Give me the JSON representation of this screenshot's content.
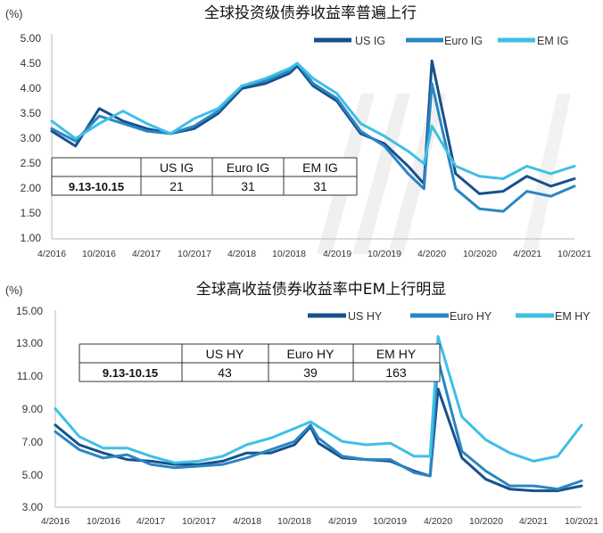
{
  "colors": {
    "us": "#17508c",
    "euro": "#2a86c2",
    "em": "#3fbfe6",
    "axis": "#b9b9b9",
    "text": "#333333"
  },
  "charts": [
    {
      "title": "全球投资级债券收益率普遍上行",
      "unit": "(%)",
      "yticks": [
        "5.00",
        "4.50",
        "4.00",
        "3.50",
        "3.00",
        "2.50",
        "2.00",
        "1.50",
        "1.00"
      ],
      "xticks": [
        "4/2016",
        "10/2016",
        "4/2017",
        "10/2017",
        "4/2018",
        "10/2018",
        "4/2019",
        "10/2019",
        "4/2020",
        "10/2020",
        "4/2021",
        "10/2021"
      ],
      "legend": [
        "US IG",
        "Euro IG",
        "EM IG"
      ],
      "table": {
        "headers": [
          "US IG",
          "Euro IG",
          "EM IG"
        ],
        "row_label": "9.13-10.15",
        "values": [
          "21",
          "31",
          "31"
        ]
      }
    },
    {
      "title": "全球高收益债券收益率中EM上行明显",
      "unit": "(%)",
      "yticks": [
        "15.00",
        "13.00",
        "11.00",
        "9.00",
        "7.00",
        "5.00",
        "3.00"
      ],
      "xticks": [
        "4/2016",
        "10/2016",
        "4/2017",
        "10/2017",
        "4/2018",
        "10/2018",
        "4/2019",
        "10/2019",
        "4/2020",
        "10/2020",
        "4/2021",
        "10/2021"
      ],
      "legend": [
        "US HY",
        "Euro HY",
        "EM HY"
      ],
      "table": {
        "headers": [
          "US HY",
          "Euro HY",
          "EM HY"
        ],
        "row_label": "9.13-10.15",
        "values": [
          "43",
          "39",
          "163"
        ]
      }
    }
  ],
  "chart_data": [
    {
      "type": "line",
      "title": "全球投资级债券收益率普遍上行",
      "ylabel": "(%)",
      "ylim": [
        1.0,
        5.0
      ],
      "x": [
        "2016-04",
        "2016-07",
        "2016-10",
        "2017-01",
        "2017-04",
        "2017-07",
        "2017-10",
        "2018-01",
        "2018-04",
        "2018-07",
        "2018-10",
        "2018-11",
        "2019-01",
        "2019-04",
        "2019-07",
        "2019-10",
        "2020-01",
        "2020-03",
        "2020-04",
        "2020-07",
        "2020-10",
        "2021-01",
        "2021-04",
        "2021-07",
        "2021-10"
      ],
      "series": [
        {
          "name": "US IG",
          "values": [
            3.15,
            2.85,
            3.6,
            3.35,
            3.2,
            3.1,
            3.2,
            3.5,
            4.0,
            4.1,
            4.3,
            4.45,
            4.05,
            3.75,
            3.1,
            2.9,
            2.45,
            2.1,
            4.55,
            2.3,
            1.9,
            1.95,
            2.25,
            2.05,
            2.2
          ]
        },
        {
          "name": "Euro IG",
          "values": [
            3.2,
            2.95,
            3.45,
            3.3,
            3.15,
            3.1,
            3.25,
            3.55,
            4.05,
            4.15,
            4.35,
            4.5,
            4.1,
            3.8,
            3.15,
            2.85,
            2.3,
            2.0,
            4.1,
            2.0,
            1.6,
            1.55,
            1.95,
            1.85,
            2.05
          ]
        },
        {
          "name": "EM IG",
          "values": [
            3.35,
            3.0,
            3.3,
            3.55,
            3.3,
            3.1,
            3.4,
            3.6,
            4.05,
            4.2,
            4.4,
            4.5,
            4.2,
            3.9,
            3.3,
            3.05,
            2.75,
            2.5,
            3.25,
            2.45,
            2.25,
            2.2,
            2.45,
            2.3,
            2.45
          ]
        }
      ]
    },
    {
      "type": "line",
      "title": "全球高收益债券收益率中EM上行明显",
      "ylabel": "(%)",
      "ylim": [
        3.0,
        15.0
      ],
      "x": [
        "2016-04",
        "2016-07",
        "2016-10",
        "2017-01",
        "2017-04",
        "2017-07",
        "2017-10",
        "2018-01",
        "2018-04",
        "2018-07",
        "2018-10",
        "2018-12",
        "2019-01",
        "2019-04",
        "2019-07",
        "2019-10",
        "2020-01",
        "2020-03",
        "2020-04",
        "2020-07",
        "2020-10",
        "2021-01",
        "2021-04",
        "2021-07",
        "2021-10"
      ],
      "series": [
        {
          "name": "US HY",
          "values": [
            8.0,
            6.8,
            6.3,
            5.9,
            5.8,
            5.6,
            5.6,
            5.8,
            6.3,
            6.3,
            6.8,
            7.9,
            6.9,
            6.0,
            5.9,
            5.8,
            5.2,
            4.9,
            10.2,
            6.0,
            4.7,
            4.1,
            4.0,
            4.0,
            4.3
          ]
        },
        {
          "name": "Euro HY",
          "values": [
            7.6,
            6.5,
            6.0,
            6.2,
            5.6,
            5.4,
            5.5,
            5.6,
            6.0,
            6.5,
            7.0,
            8.0,
            7.2,
            6.1,
            5.9,
            5.9,
            5.1,
            4.9,
            12.0,
            6.4,
            5.2,
            4.3,
            4.3,
            4.1,
            4.6
          ]
        },
        {
          "name": "EM HY",
          "values": [
            9.0,
            7.3,
            6.6,
            6.6,
            6.1,
            5.7,
            5.8,
            6.1,
            6.8,
            7.2,
            7.8,
            8.2,
            7.9,
            7.0,
            6.8,
            6.9,
            6.1,
            6.1,
            13.4,
            8.5,
            7.1,
            6.3,
            5.8,
            6.1,
            8.0
          ]
        }
      ]
    }
  ]
}
